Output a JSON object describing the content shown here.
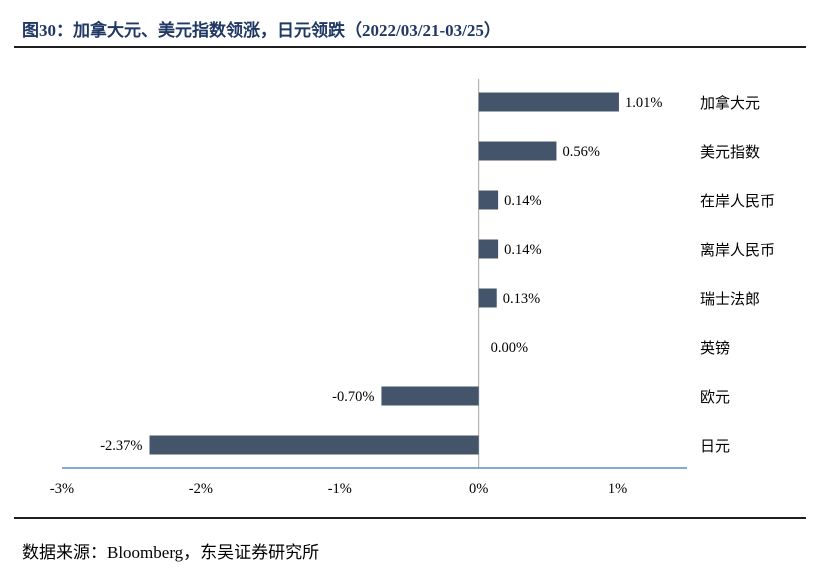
{
  "title": "图30：加拿大元、美元指数领涨，日元领跌（2022/03/21-03/25）",
  "source": "数据来源：Bloomberg，东吴证券研究所",
  "chart_data": {
    "type": "bar",
    "orientation": "horizontal",
    "categories": [
      "加拿大元",
      "美元指数",
      "在岸人民币",
      "离岸人民币",
      "瑞士法郎",
      "英镑",
      "欧元",
      "日元"
    ],
    "values": [
      1.01,
      0.56,
      0.14,
      0.14,
      0.13,
      0.0,
      -0.7,
      -2.37
    ],
    "value_labels": [
      "1.01%",
      "0.56%",
      "0.14%",
      "0.14%",
      "0.13%",
      "0.00%",
      "-0.70%",
      "-2.37%"
    ],
    "unit": "%",
    "xlim": [
      -3,
      1.5
    ],
    "xticks": [
      -3,
      -2,
      -1,
      0,
      1
    ],
    "xtick_labels": [
      "-3%",
      "-2%",
      "-1%",
      "0%",
      "1%"
    ],
    "bar_color": "#44546a",
    "axis_color": "#5b8fc9",
    "grid": false,
    "legend": "none",
    "category_labels_position": "right"
  }
}
